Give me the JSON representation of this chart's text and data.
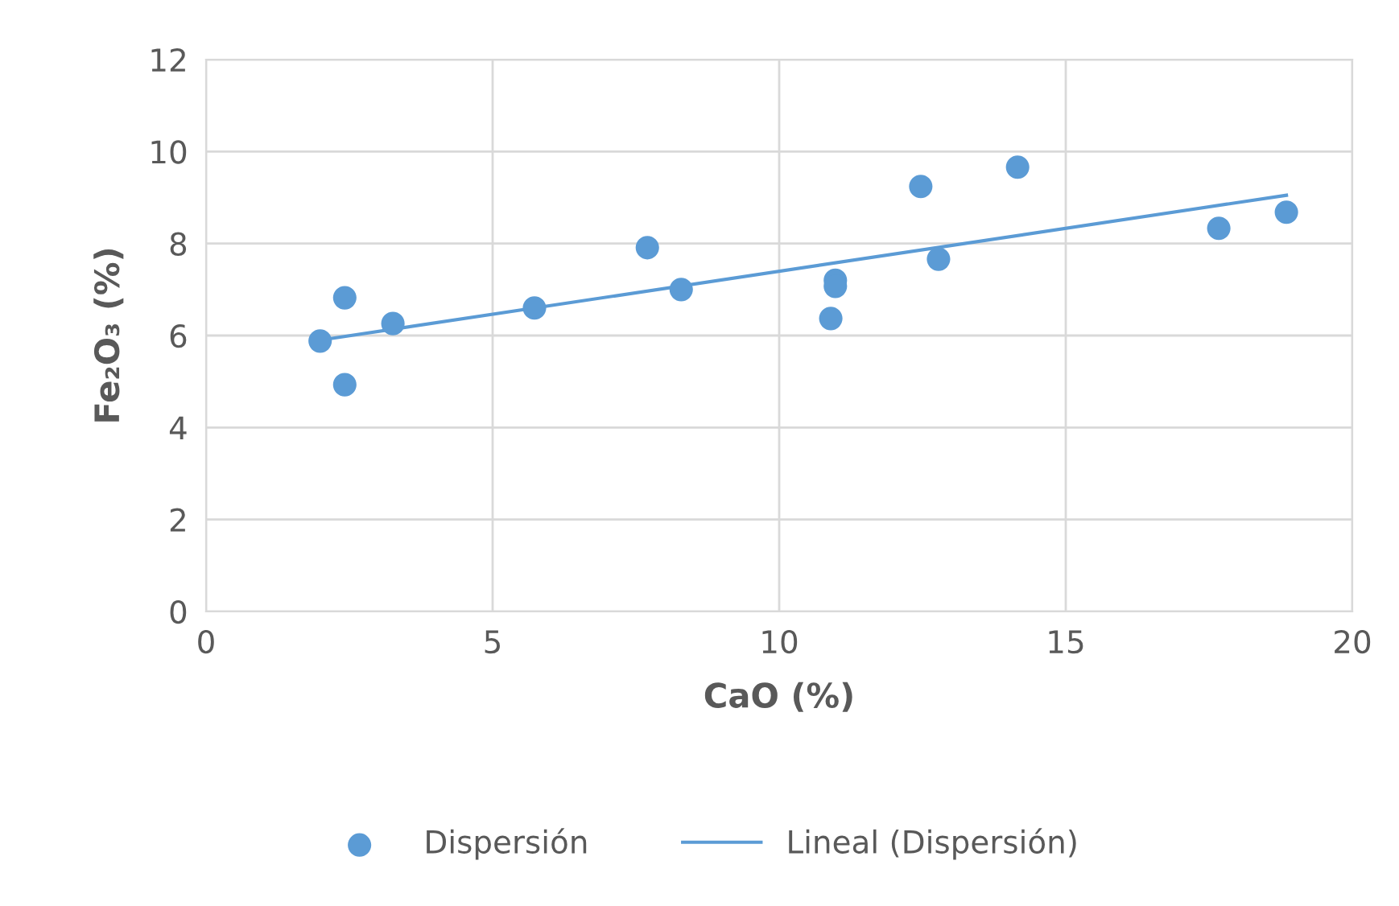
{
  "chart_data": {
    "type": "scatter",
    "xlabel": "CaO (%)",
    "ylabel": "Fe₂O₃ (%)",
    "xlim": [
      0,
      20
    ],
    "xticks": [
      0,
      5,
      10,
      15,
      20
    ],
    "ylim": [
      0,
      12
    ],
    "yticks": [
      0,
      2,
      4,
      6,
      8,
      10,
      12
    ],
    "grid": true,
    "legend": "bottom",
    "series": [
      {
        "name": "Dispersión",
        "marker": "circle",
        "color": "#5b9bd5",
        "x": [
          1.99,
          2.42,
          2.42,
          3.26,
          5.73,
          7.7,
          8.29,
          10.9,
          10.98,
          10.98,
          12.47,
          12.78,
          14.16,
          17.67,
          18.85
        ],
        "values": [
          5.88,
          6.82,
          4.93,
          6.26,
          6.6,
          7.91,
          7.0,
          6.37,
          7.2,
          7.07,
          9.24,
          7.66,
          9.66,
          8.33,
          8.68
        ]
      },
      {
        "name": "Lineal (Dispersión)",
        "type": "line",
        "marker": "none",
        "color": "#5b9bd5",
        "line_style": "solid",
        "x": [
          1.99,
          18.85
        ],
        "values": [
          5.9,
          9.05
        ]
      }
    ]
  }
}
